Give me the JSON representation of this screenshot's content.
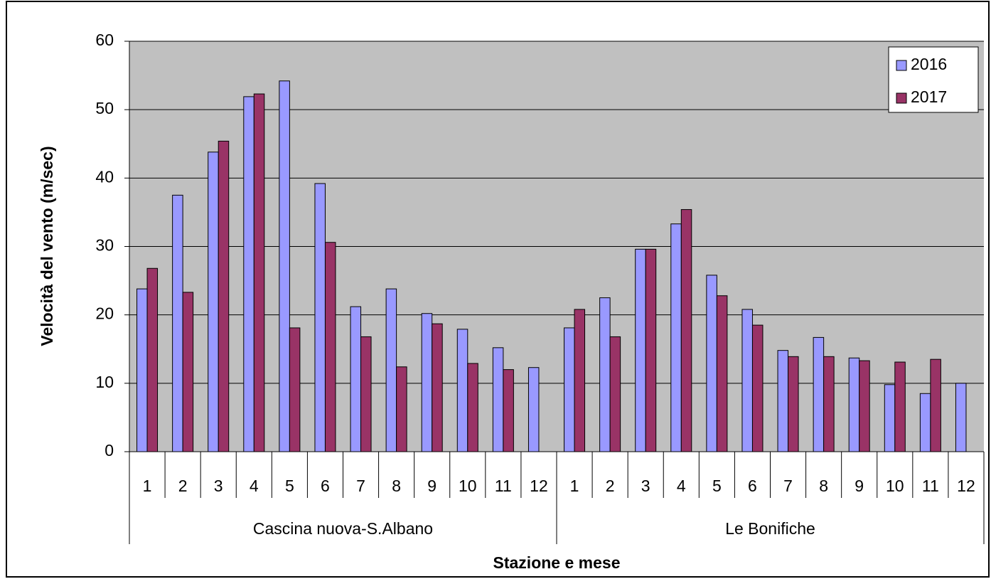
{
  "chart_data": {
    "type": "bar",
    "x_label": "Stazione e mese",
    "y_label": "Velocità del vento (m/sec)",
    "groups": [
      {
        "label": "Cascina nuova-S.Albano",
        "categories": [
          "1",
          "2",
          "3",
          "4",
          "5",
          "6",
          "7",
          "8",
          "9",
          "10",
          "11",
          "12"
        ]
      },
      {
        "label": "Le Bonifiche",
        "categories": [
          "1",
          "2",
          "3",
          "4",
          "5",
          "6",
          "7",
          "8",
          "9",
          "10",
          "11",
          "12"
        ]
      }
    ],
    "series": [
      {
        "name": "2016",
        "color": "#9999ff",
        "values": [
          23.8,
          37.5,
          43.8,
          51.9,
          54.2,
          39.2,
          21.2,
          23.8,
          20.2,
          17.9,
          15.2,
          12.3,
          18.1,
          22.5,
          29.6,
          33.3,
          25.8,
          20.8,
          14.8,
          16.7,
          13.7,
          9.8,
          8.5,
          10.0
        ]
      },
      {
        "name": "2017",
        "color": "#993366",
        "values": [
          26.8,
          23.3,
          45.4,
          52.3,
          18.1,
          30.6,
          16.8,
          12.4,
          18.7,
          12.9,
          12.0,
          null,
          20.8,
          16.8,
          29.6,
          35.4,
          22.8,
          18.5,
          13.9,
          13.9,
          13.3,
          13.1,
          13.5,
          null
        ]
      }
    ],
    "ylim": [
      0,
      60
    ],
    "yticks": [
      0,
      10,
      20,
      30,
      40,
      50,
      60
    ],
    "grid": true,
    "legend": "upper right",
    "plot_background": "#c0c0c0"
  }
}
